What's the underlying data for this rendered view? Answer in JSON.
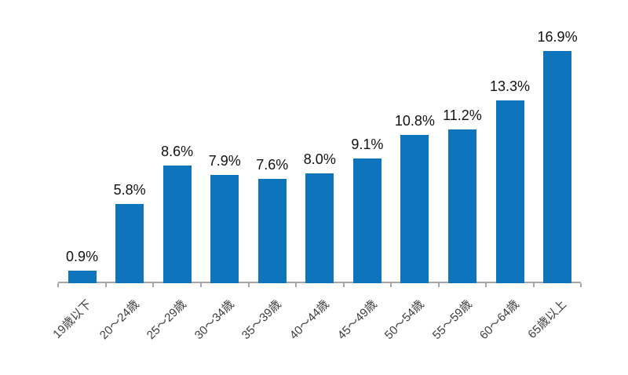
{
  "chart_data": {
    "type": "bar",
    "title": "",
    "xlabel": "",
    "ylabel": "",
    "categories": [
      "19歳以下",
      "20～24歳",
      "25～29歳",
      "30～34歳",
      "35～39歳",
      "40～44歳",
      "45～49歳",
      "50～54歳",
      "55～59歳",
      "60～64歳",
      "65歳以上"
    ],
    "values": [
      0.9,
      5.8,
      8.6,
      7.9,
      7.6,
      8.0,
      9.1,
      10.8,
      11.2,
      13.3,
      16.9
    ],
    "value_labels": [
      "0.9%",
      "5.8%",
      "8.6%",
      "7.9%",
      "7.6%",
      "8.0%",
      "9.1%",
      "10.8%",
      "11.2%",
      "13.3%",
      "16.9%"
    ],
    "ylim": [
      0,
      18
    ],
    "grid": false,
    "legend": false,
    "colors": {
      "bar": "#0e74bb",
      "axis": "#a6a6a6",
      "value_label": "#111111",
      "category_label": "#3d3d3d",
      "background": "#ffffff"
    }
  }
}
